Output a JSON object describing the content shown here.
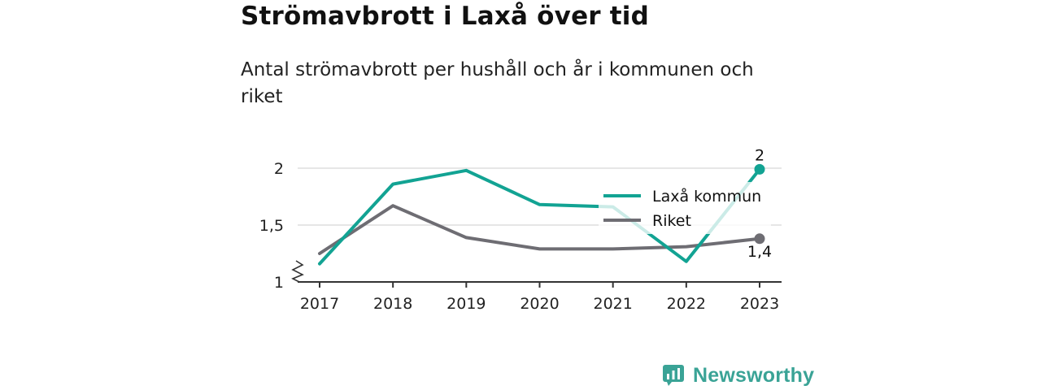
{
  "title": "Strömavbrott i Laxå över tid",
  "subtitle": "Antal strömavbrott per hushåll och år i kommunen och riket",
  "brand": "Newsworthy",
  "colors": {
    "series1": "#12a393",
    "series2": "#6e6d73",
    "brand": "#3aa396",
    "grid": "#dddddd"
  },
  "chart_data": {
    "type": "line",
    "x": [
      "2017",
      "2018",
      "2019",
      "2020",
      "2021",
      "2022",
      "2023"
    ],
    "y_ticks": [
      "1",
      "1,5",
      "2"
    ],
    "ylim": [
      1,
      2.1
    ],
    "grid": true,
    "axis_break": true,
    "legend_position": "right-middle",
    "series": [
      {
        "name": "Laxå kommun",
        "values": [
          1.16,
          1.86,
          1.98,
          1.68,
          1.66,
          1.18,
          1.99
        ],
        "end_label": "2",
        "color": "#12a393"
      },
      {
        "name": "Riket",
        "values": [
          1.25,
          1.67,
          1.39,
          1.29,
          1.29,
          1.31,
          1.38
        ],
        "end_label": "1,4",
        "color": "#6e6d73"
      }
    ]
  }
}
